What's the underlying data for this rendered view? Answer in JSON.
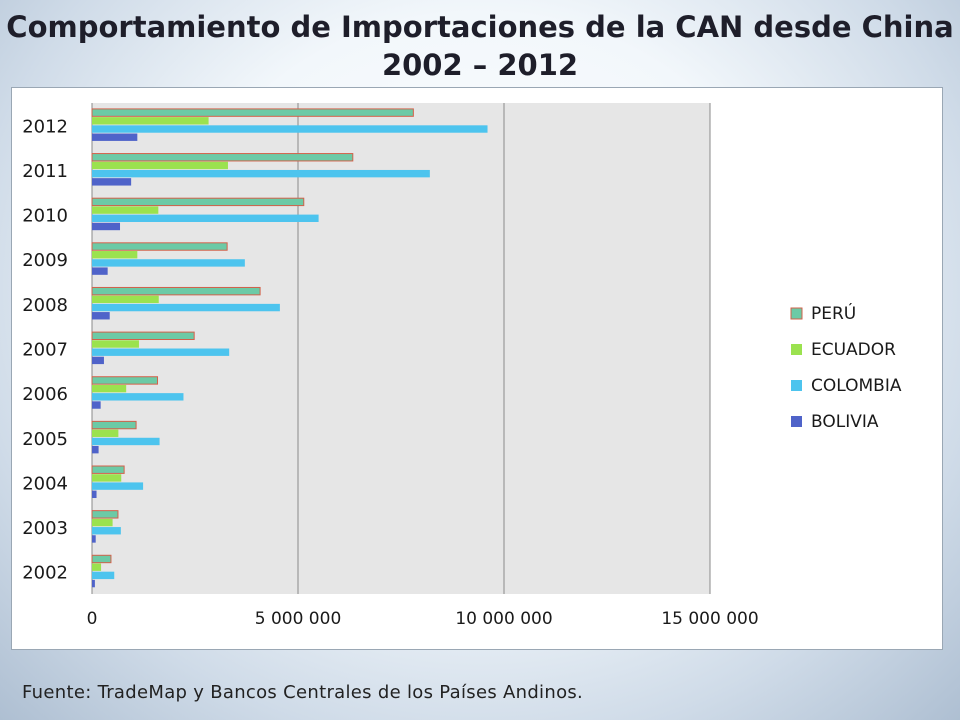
{
  "title_line1": "Comportamiento de Importaciones de la CAN desde China",
  "title_line2": "2002 – 2012",
  "source": "Fuente: TradeMap y Bancos Centrales de los Países Andinos.",
  "chart_data": {
    "type": "bar",
    "orientation": "horizontal",
    "categories": [
      "2002",
      "2003",
      "2004",
      "2005",
      "2006",
      "2007",
      "2008",
      "2009",
      "2010",
      "2011",
      "2012"
    ],
    "series": [
      {
        "name": "BOLIVIA",
        "color": "#4f63c9",
        "values": [
          70000,
          90000,
          110000,
          160000,
          210000,
          290000,
          430000,
          380000,
          680000,
          950000,
          1100000
        ]
      },
      {
        "name": "COLOMBIA",
        "color": "#4dc4ee",
        "values": [
          540000,
          700000,
          1240000,
          1640000,
          2220000,
          3330000,
          4560000,
          3710000,
          5500000,
          8200000,
          9600000
        ]
      },
      {
        "name": "ECUADOR",
        "color": "#9be24f",
        "values": [
          220000,
          500000,
          710000,
          640000,
          830000,
          1140000,
          1620000,
          1100000,
          1610000,
          3300000,
          2830000
        ]
      },
      {
        "name": "PERÚ",
        "color": "#6ccaa6",
        "values": [
          460000,
          630000,
          780000,
          1070000,
          1590000,
          2480000,
          4080000,
          3280000,
          5140000,
          6330000,
          7800000
        ]
      }
    ],
    "legend_order": [
      "PERÚ",
      "ECUADOR",
      "COLOMBIA",
      "BOLIVIA"
    ],
    "xaxis": {
      "min": 0,
      "max": 15000000,
      "ticks": [
        0,
        5000000,
        10000000,
        15000000
      ],
      "tick_labels": [
        "0",
        "5 000 000",
        "10 000 000",
        "15 000 000"
      ]
    },
    "title": "",
    "xlabel": "",
    "ylabel": "",
    "grid": true,
    "legend_position": "right"
  }
}
